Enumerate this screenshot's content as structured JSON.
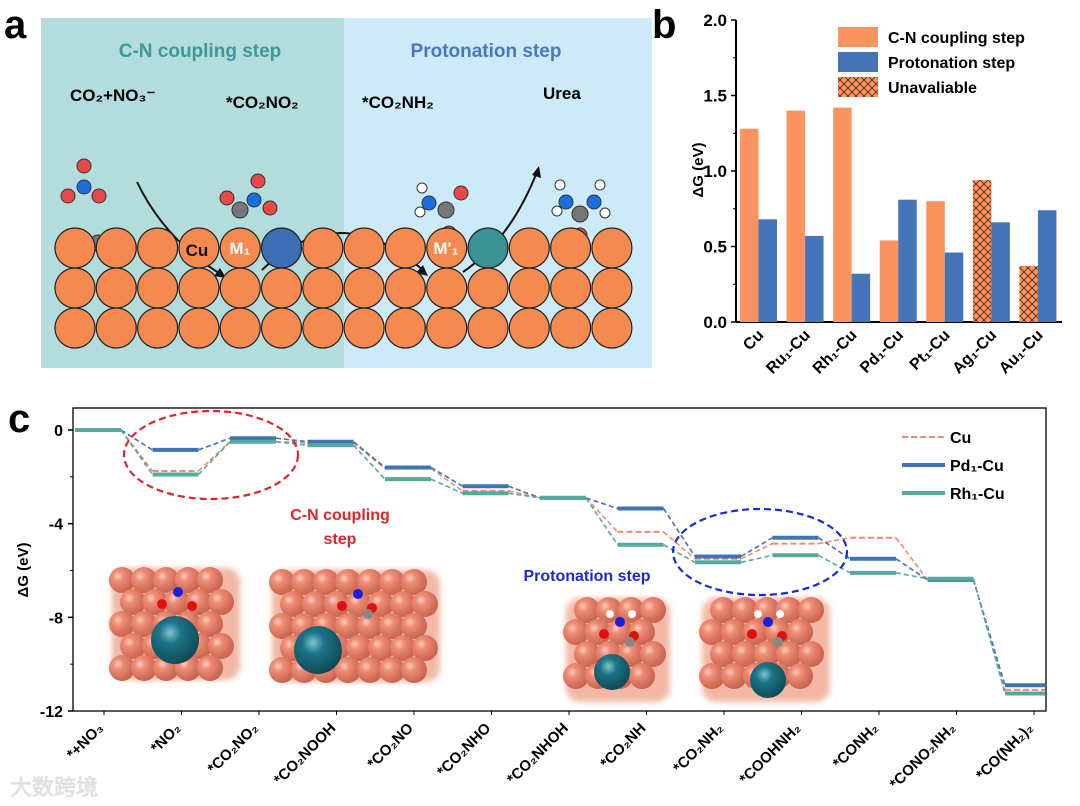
{
  "panel_a": {
    "letter": "a",
    "left_title": "C-N coupling step",
    "right_title": "Protonation step",
    "species": [
      "CO₂+NO₃⁻",
      "*CO₂NO₂",
      "*CO₂NH₂",
      "Urea"
    ],
    "atom_labels": {
      "cu": "Cu",
      "m1": "M₁",
      "m1p": "M'₁"
    },
    "colors": {
      "left_bg": "#b3dcdc",
      "right_bg": "#cdeaf8",
      "copper": "#f48a4f",
      "m1": "#3d6db3",
      "m1p": "#3a9292"
    }
  },
  "chart_data": [
    {
      "type": "bar",
      "panel_letter": "b",
      "title": "",
      "xlabel": "",
      "ylabel": "ΔG (eV)",
      "ylim": [
        0,
        2.0
      ],
      "yticks": [
        "0.0",
        "0.5",
        "1.0",
        "1.5",
        "2.0"
      ],
      "categories": [
        "Cu",
        "Ru₁-Cu",
        "Rh₁-Cu",
        "Pd₁-Cu",
        "Pt₁-Cu",
        "Ag₁-Cu",
        "Au₁-Cu"
      ],
      "series": [
        {
          "name": "C-N coupling step",
          "color": "#f99360",
          "values": [
            1.28,
            1.4,
            1.42,
            0.54,
            0.8,
            0.94,
            0.37
          ],
          "unavailable": [
            false,
            false,
            false,
            false,
            false,
            true,
            true
          ]
        },
        {
          "name": "Protonation step",
          "color": "#4574b8",
          "values": [
            0.68,
            0.57,
            0.32,
            0.81,
            0.46,
            0.66,
            0.74
          ]
        }
      ],
      "legend": [
        "C-N coupling step",
        "Protonation step",
        "Unavaliable"
      ],
      "legend_position": "top-right"
    },
    {
      "type": "line",
      "panel_letter": "c",
      "ylabel": "ΔG (eV)",
      "ylim": [
        -12,
        0
      ],
      "yticks": [
        "0",
        "-4",
        "-8",
        "-12"
      ],
      "categories": [
        "*+NO₃",
        "*NO₂",
        "*CO₂NO₂",
        "*CO₂NOOH",
        "*CO₂NO",
        "*CO₂NHO",
        "*CO₂NHOH",
        "*CO₂NH",
        "*CO₂NH₂",
        "*COOHNH₂",
        "*CONH₂",
        "*CONO₂NH₂",
        "*CO(NH₂)₂"
      ],
      "series": [
        {
          "name": "Cu",
          "color": "#f08a6e",
          "style": "dashed",
          "values": [
            0,
            -1.75,
            -0.5,
            -0.55,
            -1.65,
            -2.6,
            -2.9,
            -4.35,
            -5.5,
            -4.85,
            -4.6,
            -6.4,
            -11.1
          ]
        },
        {
          "name": "Pd₁-Cu",
          "color": "#3f73b4",
          "style": "solid",
          "values": [
            0,
            -0.85,
            -0.35,
            -0.5,
            -1.6,
            -2.4,
            -2.9,
            -3.35,
            -5.4,
            -4.6,
            -5.5,
            -6.4,
            -10.9
          ]
        },
        {
          "name": "Rh₁-Cu",
          "color": "#55aa9c",
          "style": "solid",
          "values": [
            0,
            -1.9,
            -0.5,
            -0.65,
            -2.1,
            -2.7,
            -2.9,
            -4.9,
            -5.65,
            -5.35,
            -6.1,
            -6.35,
            -11.25
          ]
        }
      ],
      "annotations": {
        "cn_line1": "C-N coupling",
        "cn_line2": "step",
        "protonation": "Protonation step"
      },
      "legend_position": "top-right"
    }
  ],
  "watermark": "大数跨境"
}
